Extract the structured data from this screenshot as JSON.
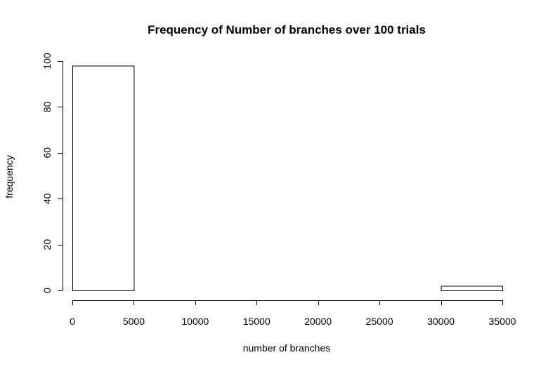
{
  "chart_data": {
    "type": "bar",
    "subtype": "histogram",
    "title": "Frequency of Number of branches over 100 trials",
    "xlabel": "number of branches",
    "ylabel": "frequency",
    "bins": [
      {
        "from": 0,
        "to": 5000,
        "count": 98
      },
      {
        "from": 5000,
        "to": 10000,
        "count": 0
      },
      {
        "from": 10000,
        "to": 15000,
        "count": 0
      },
      {
        "from": 15000,
        "to": 20000,
        "count": 0
      },
      {
        "from": 20000,
        "to": 25000,
        "count": 0
      },
      {
        "from": 25000,
        "to": 30000,
        "count": 0
      },
      {
        "from": 30000,
        "to": 35000,
        "count": 2
      }
    ],
    "x_ticks": [
      0,
      5000,
      10000,
      15000,
      20000,
      25000,
      30000,
      35000
    ],
    "y_ticks": [
      0,
      20,
      40,
      60,
      80,
      100
    ],
    "xlim": [
      0,
      35000
    ],
    "ylim": [
      0,
      100
    ],
    "grid": false,
    "legend": "none",
    "bar_fill": "#ffffff",
    "bar_stroke": "#000000"
  }
}
